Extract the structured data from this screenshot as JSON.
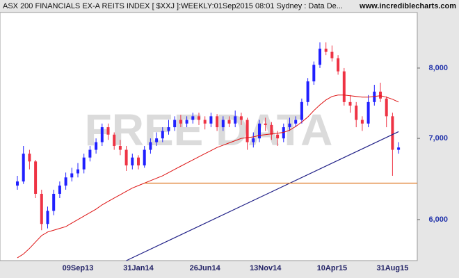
{
  "chart_data": {
    "type": "candlestick",
    "title": "ASX 200 FINANCIALS EX-A REITS INDEX [ $XXJ ]:WEEKLY:01Sep2015 08:01 Sydney : Data De...",
    "source": "www.incrediblecharts.com",
    "watermark": "FREE DATA",
    "log_scale": true,
    "ylim": [
      5550,
      8890
    ],
    "yticks": [
      {
        "value": 6000,
        "label": "6,000"
      },
      {
        "value": 7000,
        "label": "7,000"
      },
      {
        "value": 8000,
        "label": "8,000"
      }
    ],
    "up_color": "#2020ff",
    "down_color": "#ee3344",
    "categories": [
      null,
      null,
      null,
      null,
      null,
      null,
      null,
      null,
      null,
      null,
      "09Sep13",
      null,
      null,
      null,
      null,
      null,
      null,
      null,
      null,
      null,
      "31Jan14",
      null,
      null,
      null,
      null,
      null,
      null,
      null,
      null,
      null,
      null,
      "26Jun14",
      null,
      null,
      null,
      null,
      null,
      null,
      null,
      null,
      null,
      "13Nov14",
      null,
      null,
      null,
      null,
      null,
      null,
      null,
      null,
      null,
      null,
      "10Apr15",
      null,
      null,
      null,
      null,
      null,
      null,
      null,
      null,
      null,
      "31Aug15",
      null
    ],
    "open": [
      6400,
      6450,
      6800,
      6700,
      6300,
      5950,
      6100,
      6300,
      6400,
      6500,
      6550,
      6600,
      6750,
      6850,
      6950,
      7150,
      7050,
      6900,
      6850,
      6650,
      6750,
      6650,
      6850,
      6950,
      7000,
      7100,
      7150,
      7250,
      7200,
      7250,
      7300,
      7250,
      7200,
      7300,
      7150,
      7250,
      7200,
      7300,
      7250,
      6950,
      7000,
      7200,
      7180,
      7050,
      7000,
      7150,
      7200,
      7250,
      7500,
      7800,
      8050,
      8300,
      8250,
      8150,
      7950,
      7500,
      7450,
      7250,
      7200,
      7500,
      7650,
      7550,
      7300,
      6850
    ],
    "high": [
      6520,
      6900,
      6850,
      6720,
      6350,
      6150,
      6350,
      6450,
      6560,
      6620,
      6680,
      6800,
      6900,
      7000,
      7200,
      7200,
      7080,
      6980,
      6900,
      6800,
      6780,
      6900,
      7000,
      7080,
      7150,
      7250,
      7300,
      7320,
      7300,
      7350,
      7350,
      7300,
      7350,
      7330,
      7300,
      7300,
      7380,
      7350,
      7280,
      7080,
      7250,
      7280,
      7220,
      7100,
      7200,
      7280,
      7300,
      7550,
      7850,
      8100,
      8400,
      8400,
      8350,
      8200,
      8000,
      7600,
      7500,
      7300,
      7600,
      7750,
      7780,
      7580,
      7350,
      6950
    ],
    "low": [
      6350,
      6420,
      6600,
      6250,
      5880,
      5900,
      6050,
      6250,
      6350,
      6450,
      6500,
      6550,
      6700,
      6800,
      6900,
      6980,
      6850,
      6780,
      6580,
      6600,
      6600,
      6620,
      6800,
      6900,
      6950,
      7050,
      7100,
      7150,
      7150,
      7200,
      7180,
      7120,
      7150,
      7100,
      7100,
      7150,
      7150,
      7180,
      6850,
      6880,
      6950,
      7100,
      6980,
      6900,
      6950,
      7100,
      7150,
      7200,
      7450,
      7750,
      8000,
      8200,
      8100,
      7900,
      7450,
      7350,
      7150,
      7100,
      7150,
      7450,
      7500,
      7150,
      6520,
      6800
    ],
    "close": [
      6450,
      6800,
      6700,
      6300,
      5950,
      6100,
      6300,
      6400,
      6500,
      6550,
      6600,
      6750,
      6850,
      6950,
      7150,
      7050,
      6900,
      6850,
      6650,
      6750,
      6650,
      6850,
      6950,
      7000,
      7100,
      7150,
      7250,
      7200,
      7250,
      7300,
      7250,
      7200,
      7300,
      7150,
      7250,
      7200,
      7300,
      7250,
      6950,
      7000,
      7200,
      7180,
      7050,
      7000,
      7150,
      7200,
      7250,
      7500,
      7800,
      8050,
      8300,
      8250,
      8150,
      7950,
      7500,
      7450,
      7250,
      7200,
      7500,
      7650,
      7550,
      7300,
      6850,
      6880
    ],
    "ma": {
      "color": "#dd1111",
      "values": [
        5580,
        5620,
        5680,
        5750,
        5820,
        5860,
        5880,
        5900,
        5920,
        5960,
        6000,
        6040,
        6080,
        6120,
        6170,
        6210,
        6250,
        6290,
        6330,
        6370,
        6400,
        6430,
        6460,
        6490,
        6520,
        6560,
        6600,
        6640,
        6680,
        6720,
        6760,
        6800,
        6840,
        6880,
        6910,
        6940,
        6970,
        7000,
        7010,
        7020,
        7040,
        7050,
        7060,
        7070,
        7080,
        7110,
        7160,
        7220,
        7290,
        7380,
        7460,
        7530,
        7580,
        7600,
        7600,
        7590,
        7580,
        7570,
        7570,
        7580,
        7590,
        7570,
        7540,
        7500
      ]
    },
    "trendline": {
      "color": "#222288",
      "x": [
        18,
        63
      ],
      "values": [
        5550,
        7090
      ]
    },
    "support_line": {
      "color": "#dd7722",
      "x": 21,
      "value": 6430
    }
  }
}
